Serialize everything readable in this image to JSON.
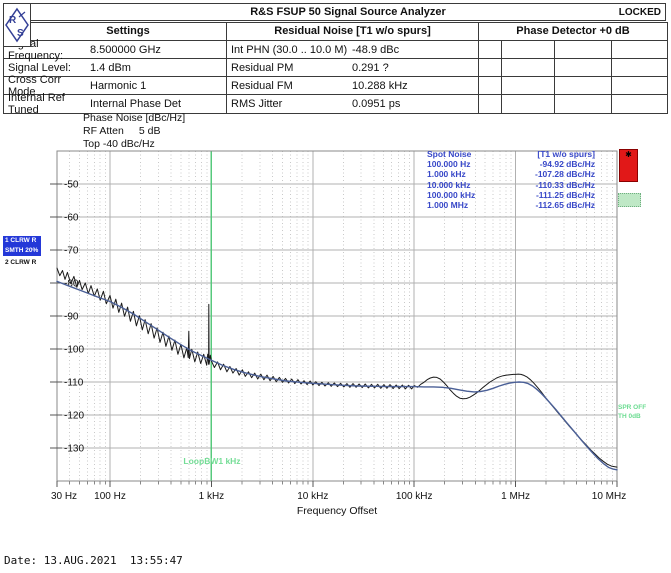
{
  "header": {
    "title": "R&S FSUP 50 Signal Source Analyzer",
    "status": "LOCKED",
    "logo_letters": {
      "r": "R",
      "s": "S"
    }
  },
  "settings_table": {
    "title": "Settings",
    "rows": [
      {
        "label": "Signal Frequency:",
        "value": "8.500000 GHz"
      },
      {
        "label": "Signal Level:",
        "value": "1.4 dBm"
      },
      {
        "label": "Cross Corr Mode",
        "value": "Harmonic 1"
      },
      {
        "label": "Internal Ref Tuned",
        "value": "Internal Phase Det"
      }
    ]
  },
  "residual_table": {
    "title": "Residual Noise [T1 w/o spurs]",
    "rows": [
      {
        "label": "Int PHN (30.0 .. 10.0 M)",
        "value": "-48.9 dBc"
      },
      {
        "label": "Residual PM",
        "value": "0.291 ?"
      },
      {
        "label": "Residual FM",
        "value": "10.288 kHz"
      },
      {
        "label": "RMS Jitter",
        "value": "0.0951 ps"
      }
    ]
  },
  "phase_detector_table": {
    "title": "Phase Detector +0 dB"
  },
  "info_block": {
    "line1": "Phase Noise [dBc/Hz]",
    "atten_label": "RF Atten",
    "atten_value": "5 dB",
    "top_label": "Top  -40 dBc/Hz"
  },
  "trace_legend": [
    {
      "label": "1 CLRW R"
    },
    {
      "label": "SMTH 20%"
    },
    {
      "label": "2 CLRW R"
    }
  ],
  "spot_noise": {
    "title": "Spot Noise",
    "title_right": "[T1 w/o spurs]",
    "rows": [
      [
        "100.000 Hz",
        "-94.92 dBc/Hz"
      ],
      [
        "1.000 kHz",
        "-107.28 dBc/Hz"
      ],
      [
        "10.000 kHz",
        "-110.33 dBc/Hz"
      ],
      [
        "100.000 kHz",
        "-111.25 dBc/Hz"
      ],
      [
        "1.000 MHz",
        "-112.65 dBc/Hz"
      ]
    ]
  },
  "annotations": {
    "loop_bw": "LoopBW1 kHz",
    "spur_off": "SPR OFF",
    "threshold": "TH 0dB"
  },
  "date_line": "Date: 13.AUG.2021  13:55:47",
  "colors": {
    "trace1": "#1b1b1b",
    "trace2": "#4a5f96",
    "grid_major": "#b0b0b0",
    "grid_minor": "#c9c9c9",
    "plot_border": "#8a8a8a",
    "green_line": "#57c97c",
    "green_text": "#74dd96",
    "spot_text": "#3848c8",
    "legend_blue": "#2438d8",
    "marker_red": "#e11818",
    "thresh_green": "#bfe8c6"
  },
  "chart_data": {
    "type": "line",
    "title": "Phase Noise [dBc/Hz]",
    "xlabel": "Frequency Offset",
    "ylabel": "Phase Noise [dBc/Hz]",
    "x_scale": "log",
    "x_range_hz": [
      30,
      10000000
    ],
    "y_range_dbchz": [
      -140,
      -40
    ],
    "grid": true,
    "x_tick_hz": [
      30,
      100,
      1000,
      10000,
      100000,
      1000000,
      10000000
    ],
    "x_tick_labels": [
      "30 Hz",
      "100 Hz",
      "1 kHz",
      "10 kHz",
      "100 kHz",
      "1 MHz",
      "10 MHz"
    ],
    "y_tick_db": [
      -50,
      -60,
      -70,
      -80,
      -90,
      -100,
      -110,
      -120,
      -130
    ],
    "y_tick_labels": [
      "-50",
      "-60",
      "-70",
      "-80",
      "-90",
      "-100",
      "-110",
      "-120",
      "-130"
    ],
    "loop_bw_marker_hz": 1000,
    "series": [
      {
        "name": "Trace 1 CLRW (raw, with spurs)",
        "color": "#1b1b1b",
        "width": 1,
        "points": [
          [
            30,
            -75.5
          ],
          [
            32,
            -77.8
          ],
          [
            34,
            -76.2
          ],
          [
            36,
            -78.9
          ],
          [
            38,
            -76.8
          ],
          [
            41,
            -80.2
          ],
          [
            44,
            -78.0
          ],
          [
            47,
            -81.3
          ],
          [
            50,
            -79.2
          ],
          [
            53,
            -82.0
          ],
          [
            57,
            -80.0
          ],
          [
            61,
            -83.2
          ],
          [
            65,
            -80.8
          ],
          [
            70,
            -84.0
          ],
          [
            75,
            -81.8
          ],
          [
            80,
            -85.2
          ],
          [
            86,
            -82.5
          ],
          [
            92,
            -86.3
          ],
          [
            100,
            -83.8
          ],
          [
            107,
            -87.6
          ],
          [
            114,
            -84.9
          ],
          [
            122,
            -88.9
          ],
          [
            130,
            -86.1
          ],
          [
            139,
            -90.1
          ],
          [
            149,
            -87.3
          ],
          [
            159,
            -91.6
          ],
          [
            170,
            -88.6
          ],
          [
            182,
            -93.0
          ],
          [
            195,
            -89.9
          ],
          [
            208,
            -94.2
          ],
          [
            222,
            -91.1
          ],
          [
            238,
            -95.4
          ],
          [
            254,
            -92.3
          ],
          [
            272,
            -96.7
          ],
          [
            291,
            -93.6
          ],
          [
            311,
            -98.0
          ],
          [
            333,
            -94.9
          ],
          [
            356,
            -99.2
          ],
          [
            381,
            -96.1
          ],
          [
            408,
            -100.4
          ],
          [
            436,
            -97.3
          ],
          [
            467,
            -101.6
          ],
          [
            500,
            -98.6
          ],
          [
            535,
            -102.7
          ],
          [
            572,
            -99.6
          ],
          [
            590,
            -102.6
          ],
          [
            598,
            -94.6
          ],
          [
            606,
            -102.9
          ],
          [
            640,
            -100.1
          ],
          [
            685,
            -103.9
          ],
          [
            733,
            -100.9
          ],
          [
            784,
            -104.4
          ],
          [
            839,
            -101.6
          ],
          [
            898,
            -104.9
          ],
          [
            920,
            -101.6
          ],
          [
            938,
            -104.6
          ],
          [
            943,
            -86.5
          ],
          [
            948,
            -104.6
          ],
          [
            975,
            -101.9
          ],
          [
            1000,
            -103.6
          ],
          [
            1070,
            -105.6
          ],
          [
            1150,
            -103.9
          ],
          [
            1230,
            -106.3
          ],
          [
            1320,
            -104.6
          ],
          [
            1420,
            -106.9
          ],
          [
            1520,
            -105.3
          ],
          [
            1630,
            -107.3
          ],
          [
            1750,
            -105.9
          ],
          [
            1880,
            -107.9
          ],
          [
            2020,
            -106.3
          ],
          [
            2160,
            -108.3
          ],
          [
            2320,
            -106.9
          ],
          [
            2490,
            -108.7
          ],
          [
            2670,
            -107.3
          ],
          [
            2860,
            -109.1
          ],
          [
            3070,
            -107.6
          ],
          [
            3290,
            -109.3
          ],
          [
            3530,
            -107.9
          ],
          [
            3790,
            -109.6
          ],
          [
            4060,
            -108.3
          ],
          [
            4360,
            -109.9
          ],
          [
            4680,
            -108.6
          ],
          [
            5020,
            -110.1
          ],
          [
            5380,
            -108.9
          ],
          [
            5770,
            -110.3
          ],
          [
            6190,
            -109.1
          ],
          [
            6640,
            -110.5
          ],
          [
            7120,
            -109.3
          ],
          [
            7640,
            -110.6
          ],
          [
            8190,
            -109.6
          ],
          [
            8780,
            -110.8
          ],
          [
            9420,
            -109.7
          ],
          [
            10000,
            -110.9
          ],
          [
            10700,
            -109.9
          ],
          [
            11500,
            -111.1
          ],
          [
            12300,
            -110.1
          ],
          [
            13200,
            -111.2
          ],
          [
            14200,
            -110.2
          ],
          [
            15200,
            -111.3
          ],
          [
            16300,
            -110.3
          ],
          [
            17500,
            -111.4
          ],
          [
            18800,
            -110.4
          ],
          [
            20200,
            -111.5
          ],
          [
            21700,
            -110.5
          ],
          [
            23200,
            -111.6
          ],
          [
            24900,
            -110.5
          ],
          [
            26700,
            -111.6
          ],
          [
            28600,
            -110.6
          ],
          [
            30700,
            -111.7
          ],
          [
            32900,
            -110.6
          ],
          [
            35300,
            -111.8
          ],
          [
            37900,
            -110.7
          ],
          [
            40600,
            -111.8
          ],
          [
            43600,
            -110.7
          ],
          [
            46800,
            -111.9
          ],
          [
            50200,
            -110.8
          ],
          [
            53800,
            -111.9
          ],
          [
            57700,
            -110.8
          ],
          [
            61900,
            -112.0
          ],
          [
            66400,
            -110.9
          ],
          [
            71200,
            -112.0
          ],
          [
            76400,
            -110.9
          ],
          [
            81900,
            -112.1
          ],
          [
            87800,
            -111.0
          ],
          [
            94200,
            -112.1
          ],
          [
            100000,
            -111.1
          ],
          [
            108000,
            -111.6
          ],
          [
            116000,
            -110.7
          ],
          [
            125000,
            -110.1
          ],
          [
            134000,
            -109.3
          ],
          [
            144000,
            -108.8
          ],
          [
            155000,
            -108.5
          ],
          [
            167000,
            -108.6
          ],
          [
            180000,
            -109.1
          ],
          [
            194000,
            -110.0
          ],
          [
            209000,
            -111.1
          ],
          [
            225000,
            -112.3
          ],
          [
            243000,
            -113.4
          ],
          [
            262000,
            -114.3
          ],
          [
            282000,
            -114.9
          ],
          [
            304000,
            -115.1
          ],
          [
            328000,
            -115.0
          ],
          [
            354000,
            -114.6
          ],
          [
            382000,
            -114.0
          ],
          [
            412000,
            -113.3
          ],
          [
            444000,
            -112.5
          ],
          [
            479000,
            -111.6
          ],
          [
            517000,
            -110.8
          ],
          [
            558000,
            -110.0
          ],
          [
            602000,
            -109.4
          ],
          [
            649000,
            -108.8
          ],
          [
            700000,
            -108.4
          ],
          [
            755000,
            -108.1
          ],
          [
            815000,
            -107.9
          ],
          [
            880000,
            -107.8
          ],
          [
            950000,
            -107.7
          ],
          [
            1000000,
            -107.7
          ],
          [
            1060000,
            -107.6
          ],
          [
            1130000,
            -107.7
          ],
          [
            1210000,
            -108.0
          ],
          [
            1300000,
            -108.5
          ],
          [
            1400000,
            -109.3
          ],
          [
            1520000,
            -110.4
          ],
          [
            1650000,
            -111.7
          ],
          [
            1800000,
            -113.1
          ],
          [
            1970000,
            -114.7
          ],
          [
            2160000,
            -116.2
          ],
          [
            2370000,
            -117.7
          ],
          [
            2600000,
            -119.2
          ],
          [
            2860000,
            -120.7
          ],
          [
            3140000,
            -122.2
          ],
          [
            3450000,
            -123.7
          ],
          [
            3790000,
            -125.1
          ],
          [
            4160000,
            -126.5
          ],
          [
            4570000,
            -127.9
          ],
          [
            5020000,
            -129.2
          ],
          [
            5510000,
            -130.6
          ],
          [
            6050000,
            -131.8
          ],
          [
            6650000,
            -133.0
          ],
          [
            7300000,
            -134.0
          ],
          [
            8020000,
            -134.9
          ],
          [
            8810000,
            -135.5
          ],
          [
            10000000,
            -135.8
          ]
        ]
      },
      {
        "name": "Trace 2 CLRW (smoothed 20%)",
        "color": "#4a5f96",
        "width": 1.4,
        "points": [
          [
            30,
            -79.5
          ],
          [
            40,
            -81.0
          ],
          [
            55,
            -82.6
          ],
          [
            75,
            -84.2
          ],
          [
            100,
            -85.6
          ],
          [
            130,
            -87.4
          ],
          [
            170,
            -89.4
          ],
          [
            220,
            -91.6
          ],
          [
            290,
            -94.0
          ],
          [
            380,
            -96.4
          ],
          [
            500,
            -98.7
          ],
          [
            650,
            -100.7
          ],
          [
            850,
            -102.4
          ],
          [
            1000,
            -103.4
          ],
          [
            1300,
            -105.0
          ],
          [
            1700,
            -106.3
          ],
          [
            2200,
            -107.3
          ],
          [
            3000,
            -108.3
          ],
          [
            4000,
            -109.0
          ],
          [
            5500,
            -109.7
          ],
          [
            7500,
            -110.1
          ],
          [
            10000,
            -110.4
          ],
          [
            14000,
            -110.7
          ],
          [
            20000,
            -111.0
          ],
          [
            28000,
            -111.2
          ],
          [
            40000,
            -111.3
          ],
          [
            56000,
            -111.4
          ],
          [
            80000,
            -111.4
          ],
          [
            100000,
            -111.4
          ],
          [
            125000,
            -111.5
          ],
          [
            155000,
            -111.5
          ],
          [
            190000,
            -111.6
          ],
          [
            230000,
            -111.9
          ],
          [
            280000,
            -112.4
          ],
          [
            330000,
            -112.8
          ],
          [
            390000,
            -113.0
          ],
          [
            450000,
            -112.9
          ],
          [
            520000,
            -112.5
          ],
          [
            600000,
            -111.9
          ],
          [
            690000,
            -111.2
          ],
          [
            780000,
            -110.7
          ],
          [
            880000,
            -110.3
          ],
          [
            980000,
            -110.1
          ],
          [
            1080000,
            -110.0
          ],
          [
            1200000,
            -110.1
          ],
          [
            1330000,
            -110.5
          ],
          [
            1470000,
            -111.2
          ],
          [
            1620000,
            -112.2
          ],
          [
            1800000,
            -113.5
          ],
          [
            2000000,
            -115.0
          ],
          [
            2250000,
            -116.8
          ],
          [
            2500000,
            -118.4
          ],
          [
            2800000,
            -120.2
          ],
          [
            3150000,
            -122.1
          ],
          [
            3550000,
            -124.0
          ],
          [
            4000000,
            -125.9
          ],
          [
            4500000,
            -127.8
          ],
          [
            5100000,
            -129.7
          ],
          [
            5750000,
            -131.5
          ],
          [
            6500000,
            -133.2
          ],
          [
            7350000,
            -134.7
          ],
          [
            8300000,
            -135.9
          ],
          [
            9150000,
            -136.4
          ],
          [
            10000000,
            -136.6
          ]
        ]
      }
    ]
  }
}
